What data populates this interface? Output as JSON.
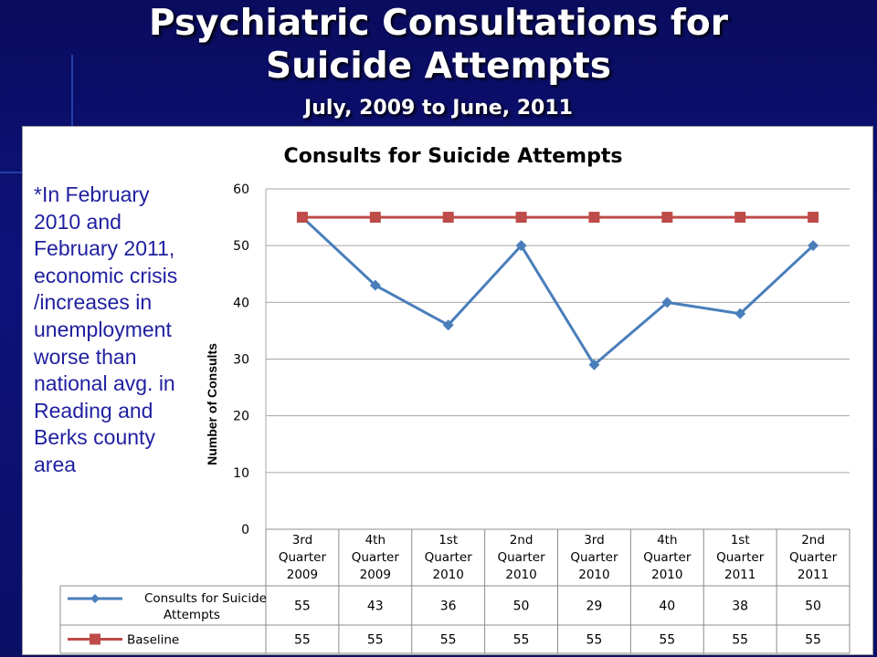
{
  "slide": {
    "title_line1": "Psychiatric Consultations for",
    "title_line2": "Suicide Attempts",
    "subtitle": "July, 2009 to June, 2011"
  },
  "note": {
    "lines": [
      "*In February",
      "2010 and",
      "February 2011,",
      "economic crisis",
      "/increases in",
      "unemployment",
      "worse than",
      "national avg. in",
      "Reading and",
      "Berks county",
      "area"
    ]
  },
  "chart_data": {
    "type": "line",
    "title": "Consults for Suicide Attempts",
    "ylabel": "Number of Consults",
    "xlabel": "",
    "ylim": [
      0,
      60
    ],
    "yticks": [
      0,
      10,
      20,
      30,
      40,
      50,
      60
    ],
    "grid": true,
    "legend": "data-table-left",
    "categories": [
      [
        "3rd",
        "Quarter",
        "2009"
      ],
      [
        "4th",
        "Quarter",
        "2009"
      ],
      [
        "1st",
        "Quarter",
        "2010"
      ],
      [
        "2nd",
        "Quarter",
        "2010"
      ],
      [
        "3rd",
        "Quarter",
        "2010"
      ],
      [
        "4th",
        "Quarter",
        "2010"
      ],
      [
        "1st",
        "Quarter",
        "2011"
      ],
      [
        "2nd",
        "Quarter",
        "2011"
      ]
    ],
    "series": [
      {
        "name": [
          "Consults for Suicide",
          "Attempts"
        ],
        "values": [
          55,
          43,
          36,
          50,
          29,
          40,
          38,
          50
        ],
        "color": "#4a7ebb",
        "marker": "diamond"
      },
      {
        "name": [
          "Baseline"
        ],
        "values": [
          55,
          55,
          55,
          55,
          55,
          55,
          55,
          55
        ],
        "color": "#be4b48",
        "marker": "square"
      }
    ]
  }
}
